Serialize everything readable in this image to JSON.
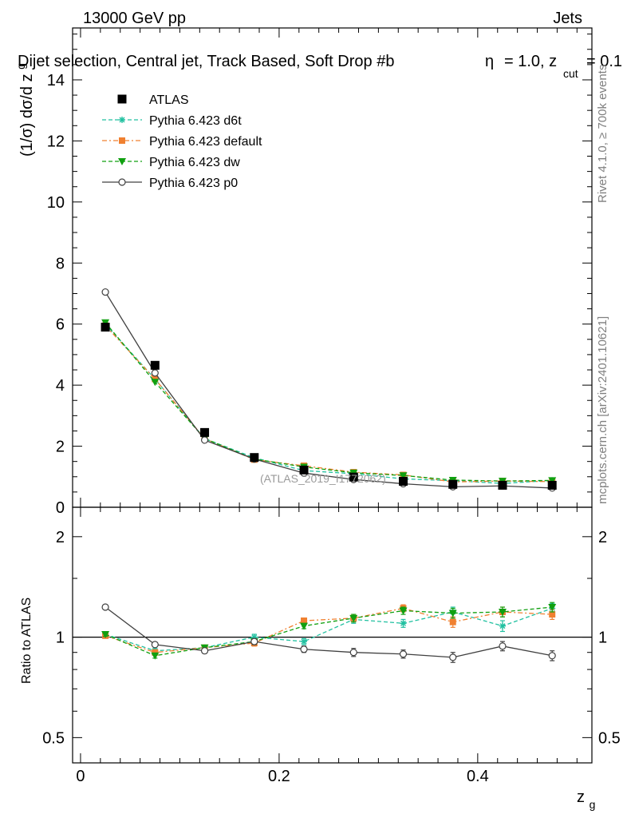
{
  "header": {
    "left": "13000 GeV pp",
    "right": "Jets"
  },
  "title": "Dijet selection, Central jet, Track Based, Soft Drop #b",
  "title_tail": "= 1.0, z",
  "title_sub": "cut",
  "title_end": "= 0.1",
  "title_eta_glyph": "η",
  "side_labels": {
    "top": "Rivet 4.1.0, ≥ 700k events",
    "bottom": "mcplots.cern.ch [arXiv:2401.10621]"
  },
  "watermark": "(ATLAS_2019_I1772062)",
  "colors": {
    "atlas": "#000000",
    "d6t": "#20c0a0",
    "default": "#f08030",
    "dw": "#10a010",
    "p0": "#404040",
    "unity": "#000000"
  },
  "chart_data": [
    {
      "type": "scatter",
      "title": "Dijet selection, Central jet, Track Based, Soft Drop",
      "xlabel": "z",
      "xlabel_sub": "g",
      "ylabel": "(1/σ) dσ/d z",
      "ylabel_sub": "g",
      "xlim": [
        -0.008,
        0.515
      ],
      "ylim": [
        0,
        15.7
      ],
      "yticks": [
        0,
        2,
        4,
        6,
        8,
        10,
        12,
        14
      ],
      "ytick_labels": [
        "0",
        "2",
        "4",
        "6",
        "8",
        "10",
        "12",
        "14"
      ],
      "x": [
        0.025,
        0.075,
        0.125,
        0.175,
        0.225,
        0.275,
        0.325,
        0.375,
        0.425,
        0.475
      ],
      "legend": [
        {
          "key": "atlas",
          "label": "ATLAS"
        },
        {
          "key": "d6t",
          "label": "Pythia 6.423 d6t"
        },
        {
          "key": "default",
          "label": "Pythia 6.423 default"
        },
        {
          "key": "dw",
          "label": "Pythia 6.423 dw"
        },
        {
          "key": "p0",
          "label": "Pythia 6.423 p0"
        }
      ],
      "series": [
        {
          "key": "atlas",
          "name": "ATLAS",
          "values": [
            5.9,
            4.65,
            2.45,
            1.63,
            1.22,
            0.99,
            0.85,
            0.75,
            0.72,
            0.72
          ]
        },
        {
          "key": "d6t",
          "name": "Pythia 6.423 d6t",
          "values": [
            6.0,
            4.2,
            2.25,
            1.62,
            1.2,
            1.1,
            0.93,
            0.87,
            0.78,
            0.88
          ]
        },
        {
          "key": "default",
          "name": "Pythia 6.423 default",
          "values": [
            5.95,
            4.2,
            2.25,
            1.56,
            1.36,
            1.15,
            1.06,
            0.83,
            0.86,
            0.84
          ]
        },
        {
          "key": "dw",
          "name": "Pythia 6.423 dw",
          "values": [
            6.05,
            4.1,
            2.25,
            1.58,
            1.32,
            1.13,
            1.04,
            0.89,
            0.86,
            0.88
          ]
        },
        {
          "key": "p0",
          "name": "Pythia 6.423 p0",
          "values": [
            7.05,
            4.4,
            2.2,
            1.58,
            1.12,
            0.91,
            0.77,
            0.67,
            0.7,
            0.63
          ]
        }
      ]
    },
    {
      "type": "scatter",
      "title": "",
      "xlabel": "z",
      "xlabel_sub": "g",
      "ylabel": "Ratio to ATLAS",
      "scale": "log",
      "ylim": [
        0.42,
        2.45
      ],
      "xticks": [
        0,
        0.2,
        0.4
      ],
      "xtick_labels": [
        "0",
        "0.2",
        "0.4"
      ],
      "yticks": [
        0.5,
        1,
        2
      ],
      "ytick_labels": [
        "0.5",
        "1",
        "2"
      ],
      "x": [
        0.025,
        0.075,
        0.125,
        0.175,
        0.225,
        0.275,
        0.325,
        0.375,
        0.425,
        0.475
      ],
      "series": [
        {
          "key": "d6t",
          "name": "Pythia 6.423 d6t",
          "values": [
            1.02,
            0.91,
            0.93,
            1.0,
            0.97,
            1.13,
            1.1,
            1.19,
            1.08,
            1.22
          ],
          "errors": [
            0.015,
            0.015,
            0.015,
            0.02,
            0.02,
            0.03,
            0.03,
            0.04,
            0.04,
            0.04
          ]
        },
        {
          "key": "default",
          "name": "Pythia 6.423 default",
          "values": [
            1.01,
            0.9,
            0.93,
            0.96,
            1.12,
            1.14,
            1.22,
            1.11,
            1.19,
            1.17
          ],
          "errors": [
            0.015,
            0.015,
            0.015,
            0.02,
            0.02,
            0.03,
            0.03,
            0.04,
            0.04,
            0.04
          ]
        },
        {
          "key": "dw",
          "name": "Pythia 6.423 dw",
          "values": [
            1.02,
            0.88,
            0.93,
            0.97,
            1.08,
            1.14,
            1.2,
            1.18,
            1.19,
            1.23
          ],
          "errors": [
            0.015,
            0.015,
            0.015,
            0.02,
            0.02,
            0.03,
            0.03,
            0.04,
            0.04,
            0.04
          ]
        },
        {
          "key": "p0",
          "name": "Pythia 6.423 p0",
          "values": [
            1.23,
            0.95,
            0.91,
            0.97,
            0.92,
            0.9,
            0.89,
            0.87,
            0.94,
            0.88
          ],
          "errors": [
            0.015,
            0.015,
            0.015,
            0.02,
            0.02,
            0.025,
            0.025,
            0.03,
            0.03,
            0.03
          ]
        }
      ]
    }
  ]
}
